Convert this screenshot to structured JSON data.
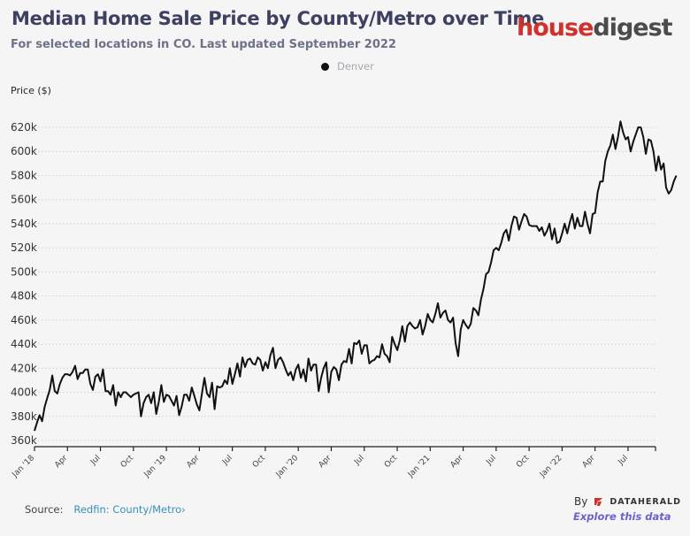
{
  "header": {
    "title": "Median Home Sale Price by County/Metro over Time",
    "subtitle": "For selected locations in CO. Last updated September 2022"
  },
  "logo": {
    "part1": "house",
    "part2": "digest",
    "colors": {
      "part1": "#d0312d",
      "part2": "#4b4b4b"
    }
  },
  "legend": [
    {
      "label": "Denver",
      "color": "#111111"
    }
  ],
  "footer": {
    "source_label": "Source:",
    "source_link": "Redfin: County/Metro",
    "source_chevron": "›",
    "by_label": "By",
    "brand": "DATAHERALD",
    "explore_link": "Explore this data"
  },
  "chart_data": {
    "type": "line",
    "title": "Median Home Sale Price by County/Metro over Time",
    "subtitle": "For selected locations in CO. Last updated September 2022",
    "ylabel": "Price ($)",
    "xlabel": "",
    "ylim": [
      360000,
      630000
    ],
    "yticks": [
      360000,
      380000,
      400000,
      420000,
      440000,
      460000,
      480000,
      500000,
      520000,
      540000,
      560000,
      580000,
      600000,
      620000
    ],
    "ytick_labels": [
      "360k",
      "380k",
      "400k",
      "420k",
      "440k",
      "460k",
      "480k",
      "500k",
      "520k",
      "540k",
      "560k",
      "580k",
      "600k",
      "620k"
    ],
    "xlim_months": [
      0,
      56.5
    ],
    "xticks_months": [
      0,
      3,
      6,
      9,
      12,
      15,
      18,
      21,
      24,
      27,
      30,
      33,
      36,
      39,
      42,
      45,
      48,
      51,
      54
    ],
    "xtick_labels": [
      "Jan '18",
      "Apr",
      "Jul",
      "Oct",
      "Jan '19",
      "Apr",
      "Jul",
      "Oct",
      "Jan '20",
      "Apr",
      "Jul",
      "Oct",
      "Jan '21",
      "Apr",
      "Jul",
      "Oct",
      "Jan '22",
      "Apr",
      "Jul"
    ],
    "grid": true,
    "legend_position": "top-center",
    "series": [
      {
        "name": "Denver",
        "color": "#111111",
        "x_unit": "months since Jan 2018",
        "x_step": 0.2308,
        "values": [
          368,
          375,
          381,
          376,
          388,
          395,
          402,
          414,
          401,
          399,
          407,
          412,
          415,
          415,
          414,
          417,
          422,
          411,
          416,
          416,
          419,
          419,
          407,
          402,
          413,
          415,
          409,
          419,
          401,
          401,
          398,
          406,
          389,
          400,
          396,
          400,
          400,
          398,
          396,
          398,
          399,
          400,
          380,
          391,
          396,
          398,
          391,
          400,
          382,
          392,
          406,
          392,
          398,
          397,
          393,
          389,
          397,
          381,
          388,
          398,
          398,
          393,
          404,
          397,
          390,
          385,
          399,
          412,
          399,
          396,
          408,
          386,
          405,
          404,
          405,
          410,
          407,
          420,
          407,
          415,
          424,
          413,
          429,
          421,
          427,
          428,
          424,
          423,
          429,
          427,
          418,
          425,
          420,
          431,
          437,
          420,
          427,
          429,
          425,
          419,
          414,
          417,
          410,
          419,
          423,
          412,
          419,
          409,
          428,
          418,
          423,
          423,
          401,
          412,
          420,
          425,
          400,
          417,
          421,
          419,
          410,
          423,
          426,
          425,
          436,
          424,
          441,
          440,
          443,
          432,
          439,
          439,
          424,
          426,
          427,
          430,
          429,
          440,
          432,
          430,
          425,
          446,
          440,
          435,
          443,
          455,
          442,
          455,
          458,
          455,
          453,
          454,
          460,
          448,
          455,
          465,
          460,
          458,
          465,
          474,
          462,
          466,
          468,
          460,
          458,
          462,
          441,
          430,
          452,
          460,
          456,
          453,
          457,
          470,
          468,
          464,
          477,
          486,
          498,
          500,
          508,
          518,
          520,
          518,
          524,
          532,
          535,
          526,
          538,
          546,
          545,
          535,
          542,
          548,
          546,
          539,
          538,
          538,
          538,
          534,
          537,
          530,
          534,
          540,
          527,
          536,
          524,
          525,
          532,
          540,
          532,
          541,
          548,
          536,
          545,
          538,
          538,
          550,
          540,
          532,
          548,
          549,
          566,
          575,
          575,
          592,
          600,
          605,
          614,
          602,
          612,
          625,
          616,
          610,
          612,
          600,
          608,
          614,
          620,
          620,
          612,
          598,
          610,
          609,
          600,
          584,
          596,
          585,
          590,
          570,
          565,
          568,
          575,
          580
        ]
      }
    ]
  }
}
